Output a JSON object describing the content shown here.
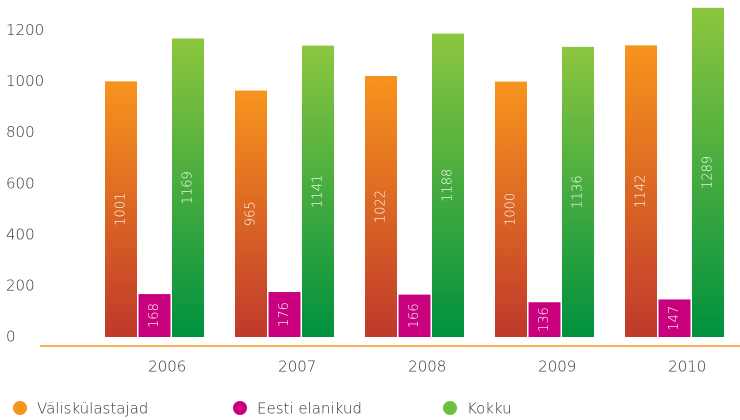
{
  "chart_data": {
    "type": "bar",
    "categories": [
      "2006",
      "2007",
      "2008",
      "2009",
      "2010"
    ],
    "series": [
      {
        "name": "Väliskülastajad",
        "color": "#f7941d",
        "values": [
          1001,
          965,
          1022,
          1000,
          1142
        ]
      },
      {
        "name": "Eesti elanikud",
        "color": "#c8007e",
        "values": [
          168,
          176,
          166,
          136,
          147
        ]
      },
      {
        "name": "Kokku",
        "color": "#6cbf3f",
        "values": [
          1169,
          1141,
          1188,
          1136,
          1289
        ]
      }
    ],
    "ylim": [
      0,
      1300
    ],
    "yticks": [
      0,
      200,
      400,
      600,
      800,
      1000,
      1200
    ],
    "grid": false,
    "legend": "bottom"
  }
}
